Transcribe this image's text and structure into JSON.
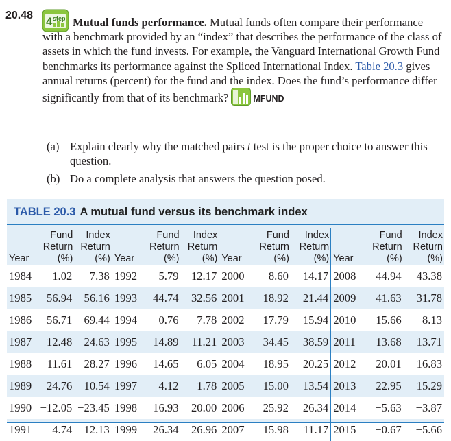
{
  "exercise": {
    "number": "20.48",
    "step_icon_text": "4step",
    "title": "Mutual funds performance.",
    "text_1": " Mutual funds often compare their performance with a benchmark provided by an “index” that describes the performance of the class of assets in which the fund invests. For example, the Vanguard International Growth Fund benchmarks its performance against the Spliced International Index. ",
    "table_ref": "Table 20.3",
    "text_2": " gives annual returns (percent) for the fund and the index. Does the fund’s performance differ significantly from that of its benchmark?",
    "dataset_name": "MFUND",
    "parts": [
      {
        "label": "(a)",
        "text_pre": "Explain clearly why the matched pairs ",
        "text_italic": "t",
        "text_post": " test is the proper choice to answer this question."
      },
      {
        "label": "(b)",
        "text_pre": "Do a complete analysis that answers the question posed.",
        "text_italic": "",
        "text_post": ""
      }
    ]
  },
  "table": {
    "number": "TABLE 20.3",
    "title": "A mutual fund versus its benchmark index",
    "headers": {
      "year": "Year",
      "fund_l1": "Fund",
      "fund_l2": "Return",
      "fund_l3": "(%)",
      "index_l1": "Index",
      "index_l2": "Return",
      "index_l3": "(%)"
    },
    "rows": [
      [
        [
          "1984",
          "−1.02",
          "7.38"
        ],
        [
          "1992",
          "−5.79",
          "−12.17"
        ],
        [
          "2000",
          "−8.60",
          "−14.17"
        ],
        [
          "2008",
          "−44.94",
          "−43.38"
        ]
      ],
      [
        [
          "1985",
          "56.94",
          "56.16"
        ],
        [
          "1993",
          "44.74",
          "32.56"
        ],
        [
          "2001",
          "−18.92",
          "−21.44"
        ],
        [
          "2009",
          "41.63",
          "31.78"
        ]
      ],
      [
        [
          "1986",
          "56.71",
          "69.44"
        ],
        [
          "1994",
          "0.76",
          "7.78"
        ],
        [
          "2002",
          "−17.79",
          "−15.94"
        ],
        [
          "2010",
          "15.66",
          "8.13"
        ]
      ],
      [
        [
          "1987",
          "12.48",
          "24.63"
        ],
        [
          "1995",
          "14.89",
          "11.21"
        ],
        [
          "2003",
          "34.45",
          "38.59"
        ],
        [
          "2011",
          "−13.68",
          "−13.71"
        ]
      ],
      [
        [
          "1988",
          "11.61",
          "28.27"
        ],
        [
          "1996",
          "14.65",
          "6.05"
        ],
        [
          "2004",
          "18.95",
          "20.25"
        ],
        [
          "2012",
          "20.01",
          "16.83"
        ]
      ],
      [
        [
          "1989",
          "24.76",
          "10.54"
        ],
        [
          "1997",
          "4.12",
          "1.78"
        ],
        [
          "2005",
          "15.00",
          "13.54"
        ],
        [
          "2013",
          "22.95",
          "15.29"
        ]
      ],
      [
        [
          "1990",
          "−12.05",
          "−23.45"
        ],
        [
          "1998",
          "16.93",
          "20.00"
        ],
        [
          "2006",
          "25.92",
          "26.34"
        ],
        [
          "2014",
          "−5.63",
          "−3.87"
        ]
      ],
      [
        [
          "1991",
          "4.74",
          "12.13"
        ],
        [
          "1999",
          "26.34",
          "26.96"
        ],
        [
          "2007",
          "15.98",
          "11.17"
        ],
        [
          "2015",
          "−0.67",
          "−5.66"
        ]
      ]
    ]
  },
  "colors": {
    "accent_blue": "#2b59a8",
    "rule_blue": "#2b7fc2",
    "table_bg": "#e2eef7",
    "icon_green": "#8cc63f"
  }
}
